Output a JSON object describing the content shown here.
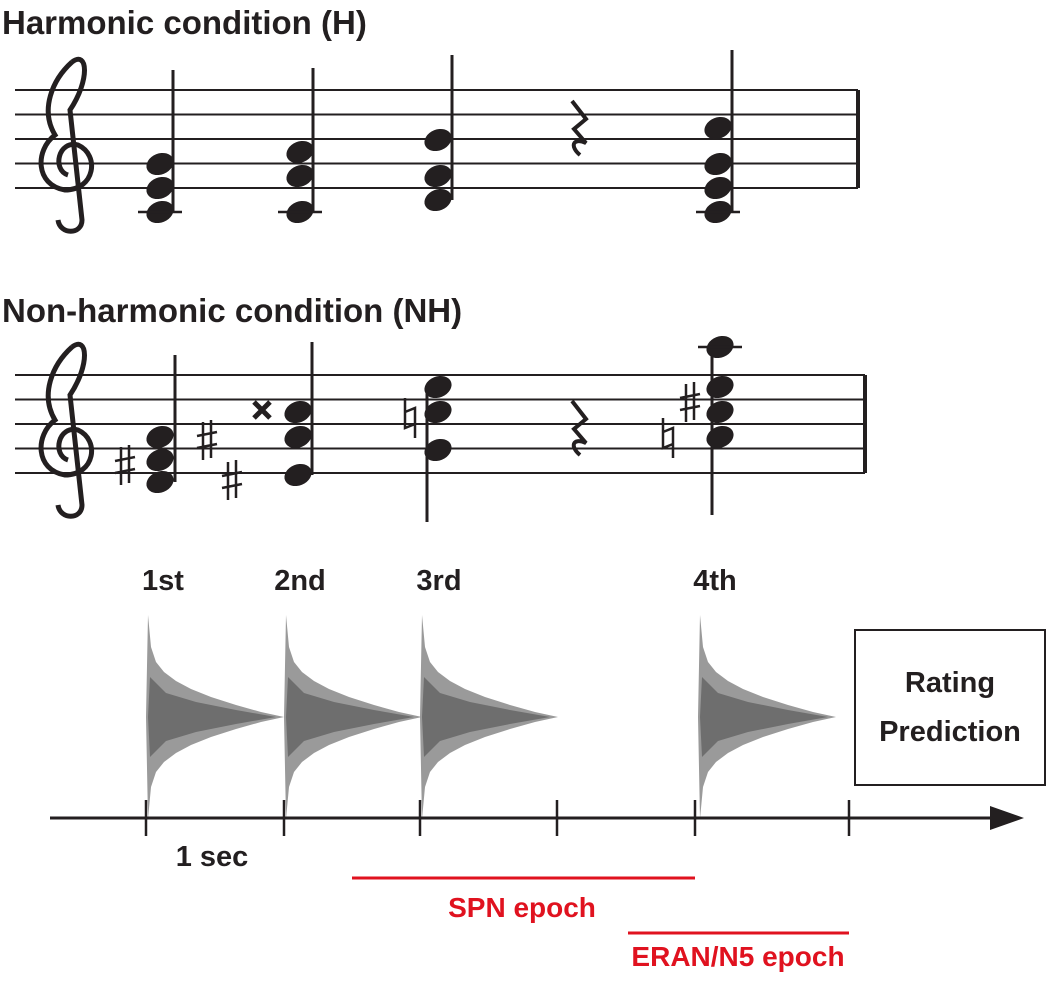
{
  "header": {
    "harmonic_title": "Harmonic condition (H)",
    "nonharmonic_title": "Non-harmonic condition (NH)"
  },
  "timeline": {
    "chords": [
      "1st",
      "2nd",
      "3rd",
      "4th"
    ],
    "interval_label": "1 sec",
    "box": {
      "line1": "Rating",
      "line2": "Prediction"
    },
    "epochs": [
      "SPN epoch",
      "ERAN/N5 epoch"
    ]
  }
}
